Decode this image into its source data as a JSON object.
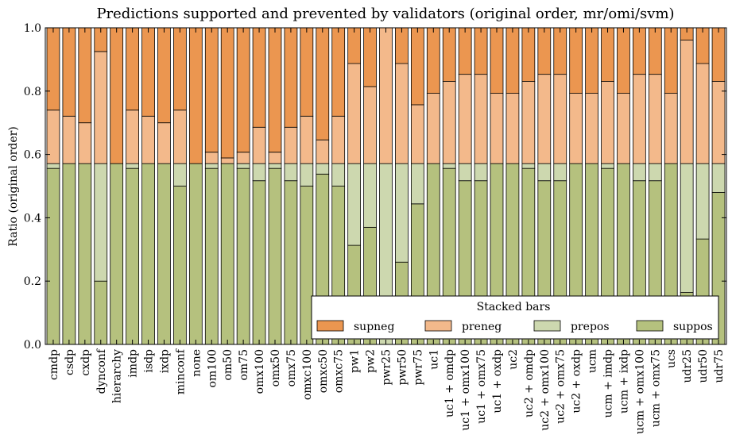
{
  "chart_data": {
    "type": "bar",
    "stacked": true,
    "title": "Predictions supported and prevented by validators (original order, mr/omi/svm)",
    "xlabel": "",
    "ylabel": "Ratio (original order)",
    "ylim": [
      0,
      1.0
    ],
    "yticks": [
      "0.0",
      "0.2",
      "0.4",
      "0.6",
      "0.8",
      "1.0"
    ],
    "grid": false,
    "legend": {
      "title": "Stacked bars",
      "placement": "lower-right"
    },
    "categories": [
      "cmdp",
      "csdp",
      "cxdp",
      "dynconf",
      "hierarchy",
      "imdp",
      "isdp",
      "ixdp",
      "minconf",
      "none",
      "om100",
      "om50",
      "om75",
      "omx100",
      "omx50",
      "omx75",
      "omxc100",
      "omxc50",
      "omxc75",
      "pw1",
      "pw2",
      "pwr25",
      "pwr50",
      "pwr75",
      "uc1",
      "uc1 + omdp",
      "uc1 + omx100",
      "uc1 + omx75",
      "uc1 + oxdp",
      "uc2",
      "uc2 + omdp",
      "uc2 + omx100",
      "uc2 + omx75",
      "uc2 + oxdp",
      "ucm",
      "ucm + imdp",
      "ucm + ixdp",
      "ucm + omx100",
      "ucm + omx75",
      "ucs",
      "udr25",
      "udr50",
      "udr75"
    ],
    "series": [
      {
        "name": "suppos",
        "color": "#b5c17e",
        "values": [
          0.556,
          0.571,
          0.571,
          0.2,
          0.571,
          0.556,
          0.571,
          0.571,
          0.5,
          0.571,
          0.556,
          0.571,
          0.556,
          0.517,
          0.556,
          0.517,
          0.5,
          0.538,
          0.5,
          0.313,
          0.37,
          0.0,
          0.26,
          0.444,
          0.571,
          0.556,
          0.517,
          0.517,
          0.571,
          0.571,
          0.556,
          0.517,
          0.517,
          0.571,
          0.571,
          0.556,
          0.571,
          0.517,
          0.517,
          0.571,
          0.164,
          0.333,
          0.48
        ]
      },
      {
        "name": "prepos",
        "color": "#cdd8af",
        "values": [
          0.015,
          0.0,
          0.0,
          0.371,
          0.0,
          0.015,
          0.0,
          0.0,
          0.071,
          0.0,
          0.015,
          0.0,
          0.015,
          0.054,
          0.015,
          0.054,
          0.071,
          0.033,
          0.071,
          0.258,
          0.201,
          0.571,
          0.311,
          0.127,
          0.0,
          0.015,
          0.054,
          0.054,
          0.0,
          0.0,
          0.015,
          0.054,
          0.054,
          0.0,
          0.0,
          0.015,
          0.0,
          0.054,
          0.054,
          0.0,
          0.407,
          0.238,
          0.091
        ]
      },
      {
        "name": "preneg",
        "color": "#f3b98b",
        "values": [
          0.169,
          0.15,
          0.129,
          0.354,
          0.0,
          0.169,
          0.15,
          0.129,
          0.169,
          0.0,
          0.036,
          0.018,
          0.036,
          0.115,
          0.036,
          0.115,
          0.15,
          0.075,
          0.15,
          0.316,
          0.243,
          0.429,
          0.316,
          0.186,
          0.222,
          0.26,
          0.282,
          0.282,
          0.222,
          0.222,
          0.26,
          0.282,
          0.282,
          0.222,
          0.222,
          0.26,
          0.222,
          0.282,
          0.282,
          0.222,
          0.39,
          0.316,
          0.26
        ]
      },
      {
        "name": "supneg",
        "color": "#eb9650",
        "values": [
          0.26,
          0.279,
          0.3,
          0.075,
          0.429,
          0.26,
          0.279,
          0.3,
          0.26,
          0.429,
          0.393,
          0.411,
          0.393,
          0.314,
          0.393,
          0.314,
          0.279,
          0.354,
          0.279,
          0.113,
          0.186,
          0.0,
          0.113,
          0.243,
          0.207,
          0.169,
          0.147,
          0.147,
          0.207,
          0.207,
          0.169,
          0.147,
          0.147,
          0.207,
          0.207,
          0.169,
          0.207,
          0.147,
          0.147,
          0.207,
          0.039,
          0.113,
          0.169
        ]
      }
    ]
  }
}
